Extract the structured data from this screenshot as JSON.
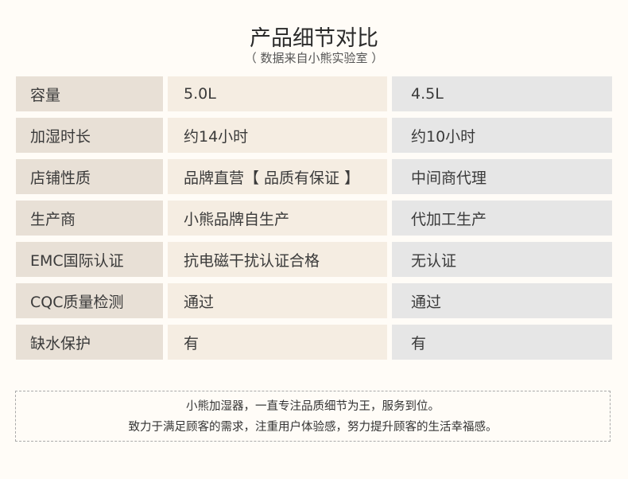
{
  "header": {
    "title": "产品细节对比",
    "subtitle": "（ 数据来自小熊实验室 ）"
  },
  "rows": [
    {
      "label": "容量",
      "ours": "5.0L",
      "other": "4.5L"
    },
    {
      "label": "加湿时长",
      "ours": "约14小时",
      "other": "约10小时"
    },
    {
      "label": "店铺性质",
      "ours": "品牌直营【 品质有保证 】",
      "other": "中间商代理"
    },
    {
      "label": "生产商",
      "ours": "小熊品牌自生产",
      "other": "代加工生产"
    },
    {
      "label": "EMC国际认证",
      "ours": "抗电磁干扰认证合格",
      "other": "无认证"
    },
    {
      "label": "CQC质量检测",
      "ours": "通过",
      "other": "通过"
    },
    {
      "label": "缺水保护",
      "ours": "有",
      "other": "有"
    }
  ],
  "note": {
    "line1": "小熊加湿器，一直专注品质细节为王，服务到位。",
    "line2": "致力于满足顾客的需求，注重用户体验感，努力提升顾客的生活幸福感。"
  },
  "colors": {
    "label_bg": "#e8e0d6",
    "ours_bg": "#f5ede2",
    "other_bg": "#e6e6e6",
    "page_bg": "#fffcf7"
  }
}
